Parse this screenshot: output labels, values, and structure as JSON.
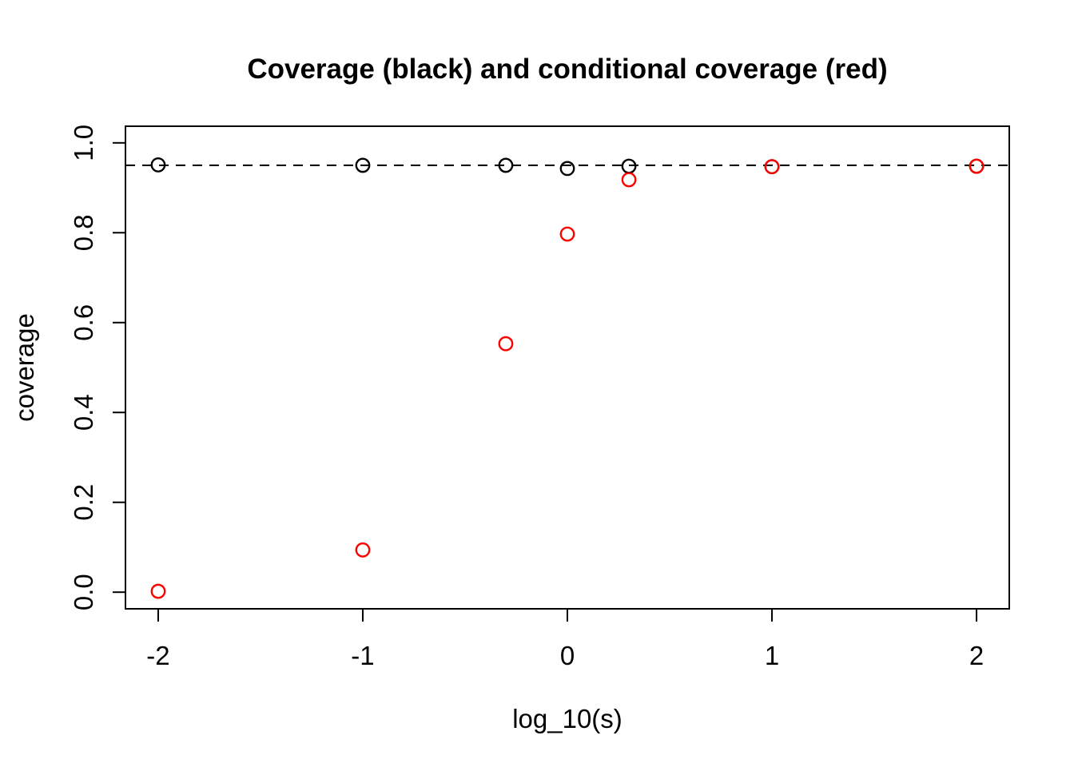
{
  "chart_data": {
    "type": "scatter",
    "title": "Coverage (black) and conditional coverage (red)",
    "xlabel": "log_10(s)",
    "ylabel": "coverage",
    "xlim": [
      -2.16,
      2.16
    ],
    "ylim": [
      -0.037,
      1.037
    ],
    "grid": false,
    "legend": "none (encoded in title text)",
    "x_ticks": {
      "values": [
        -2,
        -1,
        0,
        1,
        2
      ],
      "labels": [
        "-2",
        "-1",
        "0",
        "1",
        "2"
      ]
    },
    "y_ticks": {
      "values": [
        0.0,
        0.2,
        0.4,
        0.6,
        0.8,
        1.0
      ],
      "labels": [
        "0.0",
        "0.2",
        "0.4",
        "0.6",
        "0.8",
        "1.0"
      ]
    },
    "reference_line": {
      "y": 0.95,
      "style": "dashed",
      "color": "#000000"
    },
    "marker": "open-circle",
    "series": [
      {
        "name": "coverage",
        "key": "coverage-black",
        "color": "#000000",
        "x": [
          -2,
          -1,
          -0.301,
          0,
          0.301,
          1,
          2
        ],
        "y": [
          0.951,
          0.95,
          0.95,
          0.943,
          0.948,
          0.947,
          0.948
        ]
      },
      {
        "name": "conditional coverage",
        "key": "conditional-coverage-red",
        "color": "#FF0000",
        "x": [
          -2,
          -1,
          -0.301,
          0,
          0.301,
          1,
          2
        ],
        "y": [
          0.002,
          0.094,
          0.553,
          0.797,
          0.918,
          0.947,
          0.948
        ]
      }
    ],
    "colors": {
      "black": "#000000",
      "red": "#FF0000"
    }
  }
}
